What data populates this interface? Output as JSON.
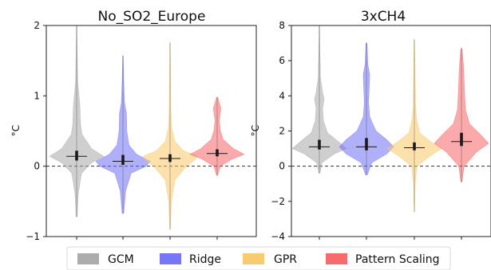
{
  "figure": {
    "legend": {
      "placement": "bottom-center",
      "entries": [
        {
          "label": "GCM",
          "color": "#a8a8a8"
        },
        {
          "label": "Ridge",
          "color": "#6f6ff5"
        },
        {
          "label": "GPR",
          "color": "#f9c868"
        },
        {
          "label": "Pattern Scaling",
          "color": "#f56464"
        }
      ]
    },
    "zero_line": {
      "style": "dashed",
      "color": "#333333"
    }
  },
  "chart_data": [
    {
      "type": "violin",
      "title": "No_SO2_Europe",
      "ylabel": "°C",
      "xlabel": "",
      "ylim": [
        -1,
        2
      ],
      "yticks": [
        -1,
        0,
        1,
        2
      ],
      "tick_labels": [
        "−1",
        "0",
        "1",
        "2"
      ],
      "grid": false,
      "series": [
        {
          "name": "GCM",
          "color": "#a8a8a8",
          "min": -0.72,
          "max": 2.0,
          "median": 0.14,
          "q1": 0.08,
          "q3": 0.22,
          "profile": [
            [
              -0.72,
              0.02
            ],
            [
              -0.4,
              0.06
            ],
            [
              -0.1,
              0.18
            ],
            [
              0.05,
              0.55
            ],
            [
              0.14,
              1.0
            ],
            [
              0.25,
              0.55
            ],
            [
              0.45,
              0.2
            ],
            [
              0.6,
              0.14
            ],
            [
              0.85,
              0.12
            ],
            [
              0.95,
              0.1
            ],
            [
              1.2,
              0.04
            ],
            [
              1.6,
              0.02
            ],
            [
              2.0,
              0.01
            ]
          ]
        },
        {
          "name": "Ridge",
          "color": "#6f6ff5",
          "min": -0.67,
          "max": 1.57,
          "median": 0.07,
          "q1": 0.02,
          "q3": 0.16,
          "profile": [
            [
              -0.67,
              0.03
            ],
            [
              -0.35,
              0.1
            ],
            [
              -0.1,
              0.3
            ],
            [
              0.0,
              0.85
            ],
            [
              0.07,
              1.0
            ],
            [
              0.17,
              0.5
            ],
            [
              0.3,
              0.22
            ],
            [
              0.5,
              0.14
            ],
            [
              0.75,
              0.13
            ],
            [
              0.9,
              0.06
            ],
            [
              1.2,
              0.03
            ],
            [
              1.57,
              0.01
            ]
          ]
        },
        {
          "name": "GPR",
          "color": "#f9c868",
          "min": -0.9,
          "max": 1.76,
          "median": 0.11,
          "q1": 0.06,
          "q3": 0.17,
          "profile": [
            [
              -0.9,
              0.01
            ],
            [
              -0.5,
              0.05
            ],
            [
              -0.2,
              0.18
            ],
            [
              0.0,
              0.6
            ],
            [
              0.1,
              0.95
            ],
            [
              0.14,
              1.0
            ],
            [
              0.22,
              0.5
            ],
            [
              0.35,
              0.18
            ],
            [
              0.55,
              0.06
            ],
            [
              0.8,
              0.03
            ],
            [
              1.2,
              0.02
            ],
            [
              1.76,
              0.01
            ]
          ]
        },
        {
          "name": "Pattern Scaling",
          "color": "#f56464",
          "min": -0.13,
          "max": 0.98,
          "median": 0.18,
          "q1": 0.14,
          "q3": 0.24,
          "profile": [
            [
              -0.13,
              0.02
            ],
            [
              0.0,
              0.12
            ],
            [
              0.1,
              0.55
            ],
            [
              0.17,
              1.0
            ],
            [
              0.25,
              0.6
            ],
            [
              0.38,
              0.22
            ],
            [
              0.5,
              0.12
            ],
            [
              0.65,
              0.08
            ],
            [
              0.82,
              0.14
            ],
            [
              0.9,
              0.08
            ],
            [
              0.98,
              0.02
            ]
          ]
        }
      ]
    },
    {
      "type": "violin",
      "title": "3xCH4",
      "ylabel": "°C",
      "xlabel": "",
      "ylim": [
        -4,
        8
      ],
      "yticks": [
        -4,
        -2,
        0,
        2,
        4,
        6,
        8
      ],
      "tick_labels": [
        "−4",
        "−2",
        "0",
        "2",
        "4",
        "6",
        "8"
      ],
      "grid": false,
      "series": [
        {
          "name": "GCM",
          "color": "#a8a8a8",
          "min": -0.4,
          "max": 8.0,
          "median": 1.1,
          "q1": 0.95,
          "q3": 1.5,
          "profile": [
            [
              -0.4,
              0.02
            ],
            [
              0.2,
              0.1
            ],
            [
              0.7,
              0.55
            ],
            [
              1.0,
              1.0
            ],
            [
              1.4,
              0.7
            ],
            [
              1.9,
              0.3
            ],
            [
              2.6,
              0.15
            ],
            [
              3.3,
              0.12
            ],
            [
              3.8,
              0.18
            ],
            [
              4.2,
              0.12
            ],
            [
              5.0,
              0.04
            ],
            [
              6.5,
              0.02
            ],
            [
              8.0,
              0.01
            ]
          ]
        },
        {
          "name": "Ridge",
          "color": "#6f6ff5",
          "min": -0.5,
          "max": 7.0,
          "median": 1.1,
          "q1": 0.9,
          "q3": 1.6,
          "profile": [
            [
              -0.5,
              0.03
            ],
            [
              0.2,
              0.2
            ],
            [
              0.7,
              0.75
            ],
            [
              1.1,
              1.0
            ],
            [
              1.5,
              0.75
            ],
            [
              2.0,
              0.35
            ],
            [
              2.8,
              0.12
            ],
            [
              3.6,
              0.08
            ],
            [
              4.4,
              0.1
            ],
            [
              5.2,
              0.12
            ],
            [
              5.8,
              0.05
            ],
            [
              7.0,
              0.02
            ]
          ]
        },
        {
          "name": "GPR",
          "color": "#f9c868",
          "min": -2.6,
          "max": 7.2,
          "median": 1.05,
          "q1": 0.9,
          "q3": 1.35,
          "profile": [
            [
              -2.6,
              0.01
            ],
            [
              -1.0,
              0.03
            ],
            [
              0.0,
              0.1
            ],
            [
              0.6,
              0.6
            ],
            [
              1.0,
              1.0
            ],
            [
              1.4,
              0.6
            ],
            [
              1.9,
              0.2
            ],
            [
              2.7,
              0.08
            ],
            [
              3.5,
              0.04
            ],
            [
              5.0,
              0.03
            ],
            [
              6.0,
              0.02
            ],
            [
              7.2,
              0.01
            ]
          ]
        },
        {
          "name": "Pattern Scaling",
          "color": "#f56464",
          "min": -0.9,
          "max": 6.7,
          "median": 1.4,
          "q1": 1.15,
          "q3": 1.9,
          "profile": [
            [
              -0.9,
              0.02
            ],
            [
              0.0,
              0.1
            ],
            [
              0.8,
              0.55
            ],
            [
              1.3,
              1.0
            ],
            [
              1.8,
              0.7
            ],
            [
              2.4,
              0.3
            ],
            [
              3.2,
              0.15
            ],
            [
              4.0,
              0.12
            ],
            [
              4.8,
              0.1
            ],
            [
              5.6,
              0.08
            ],
            [
              6.2,
              0.05
            ],
            [
              6.7,
              0.02
            ]
          ]
        }
      ]
    }
  ]
}
